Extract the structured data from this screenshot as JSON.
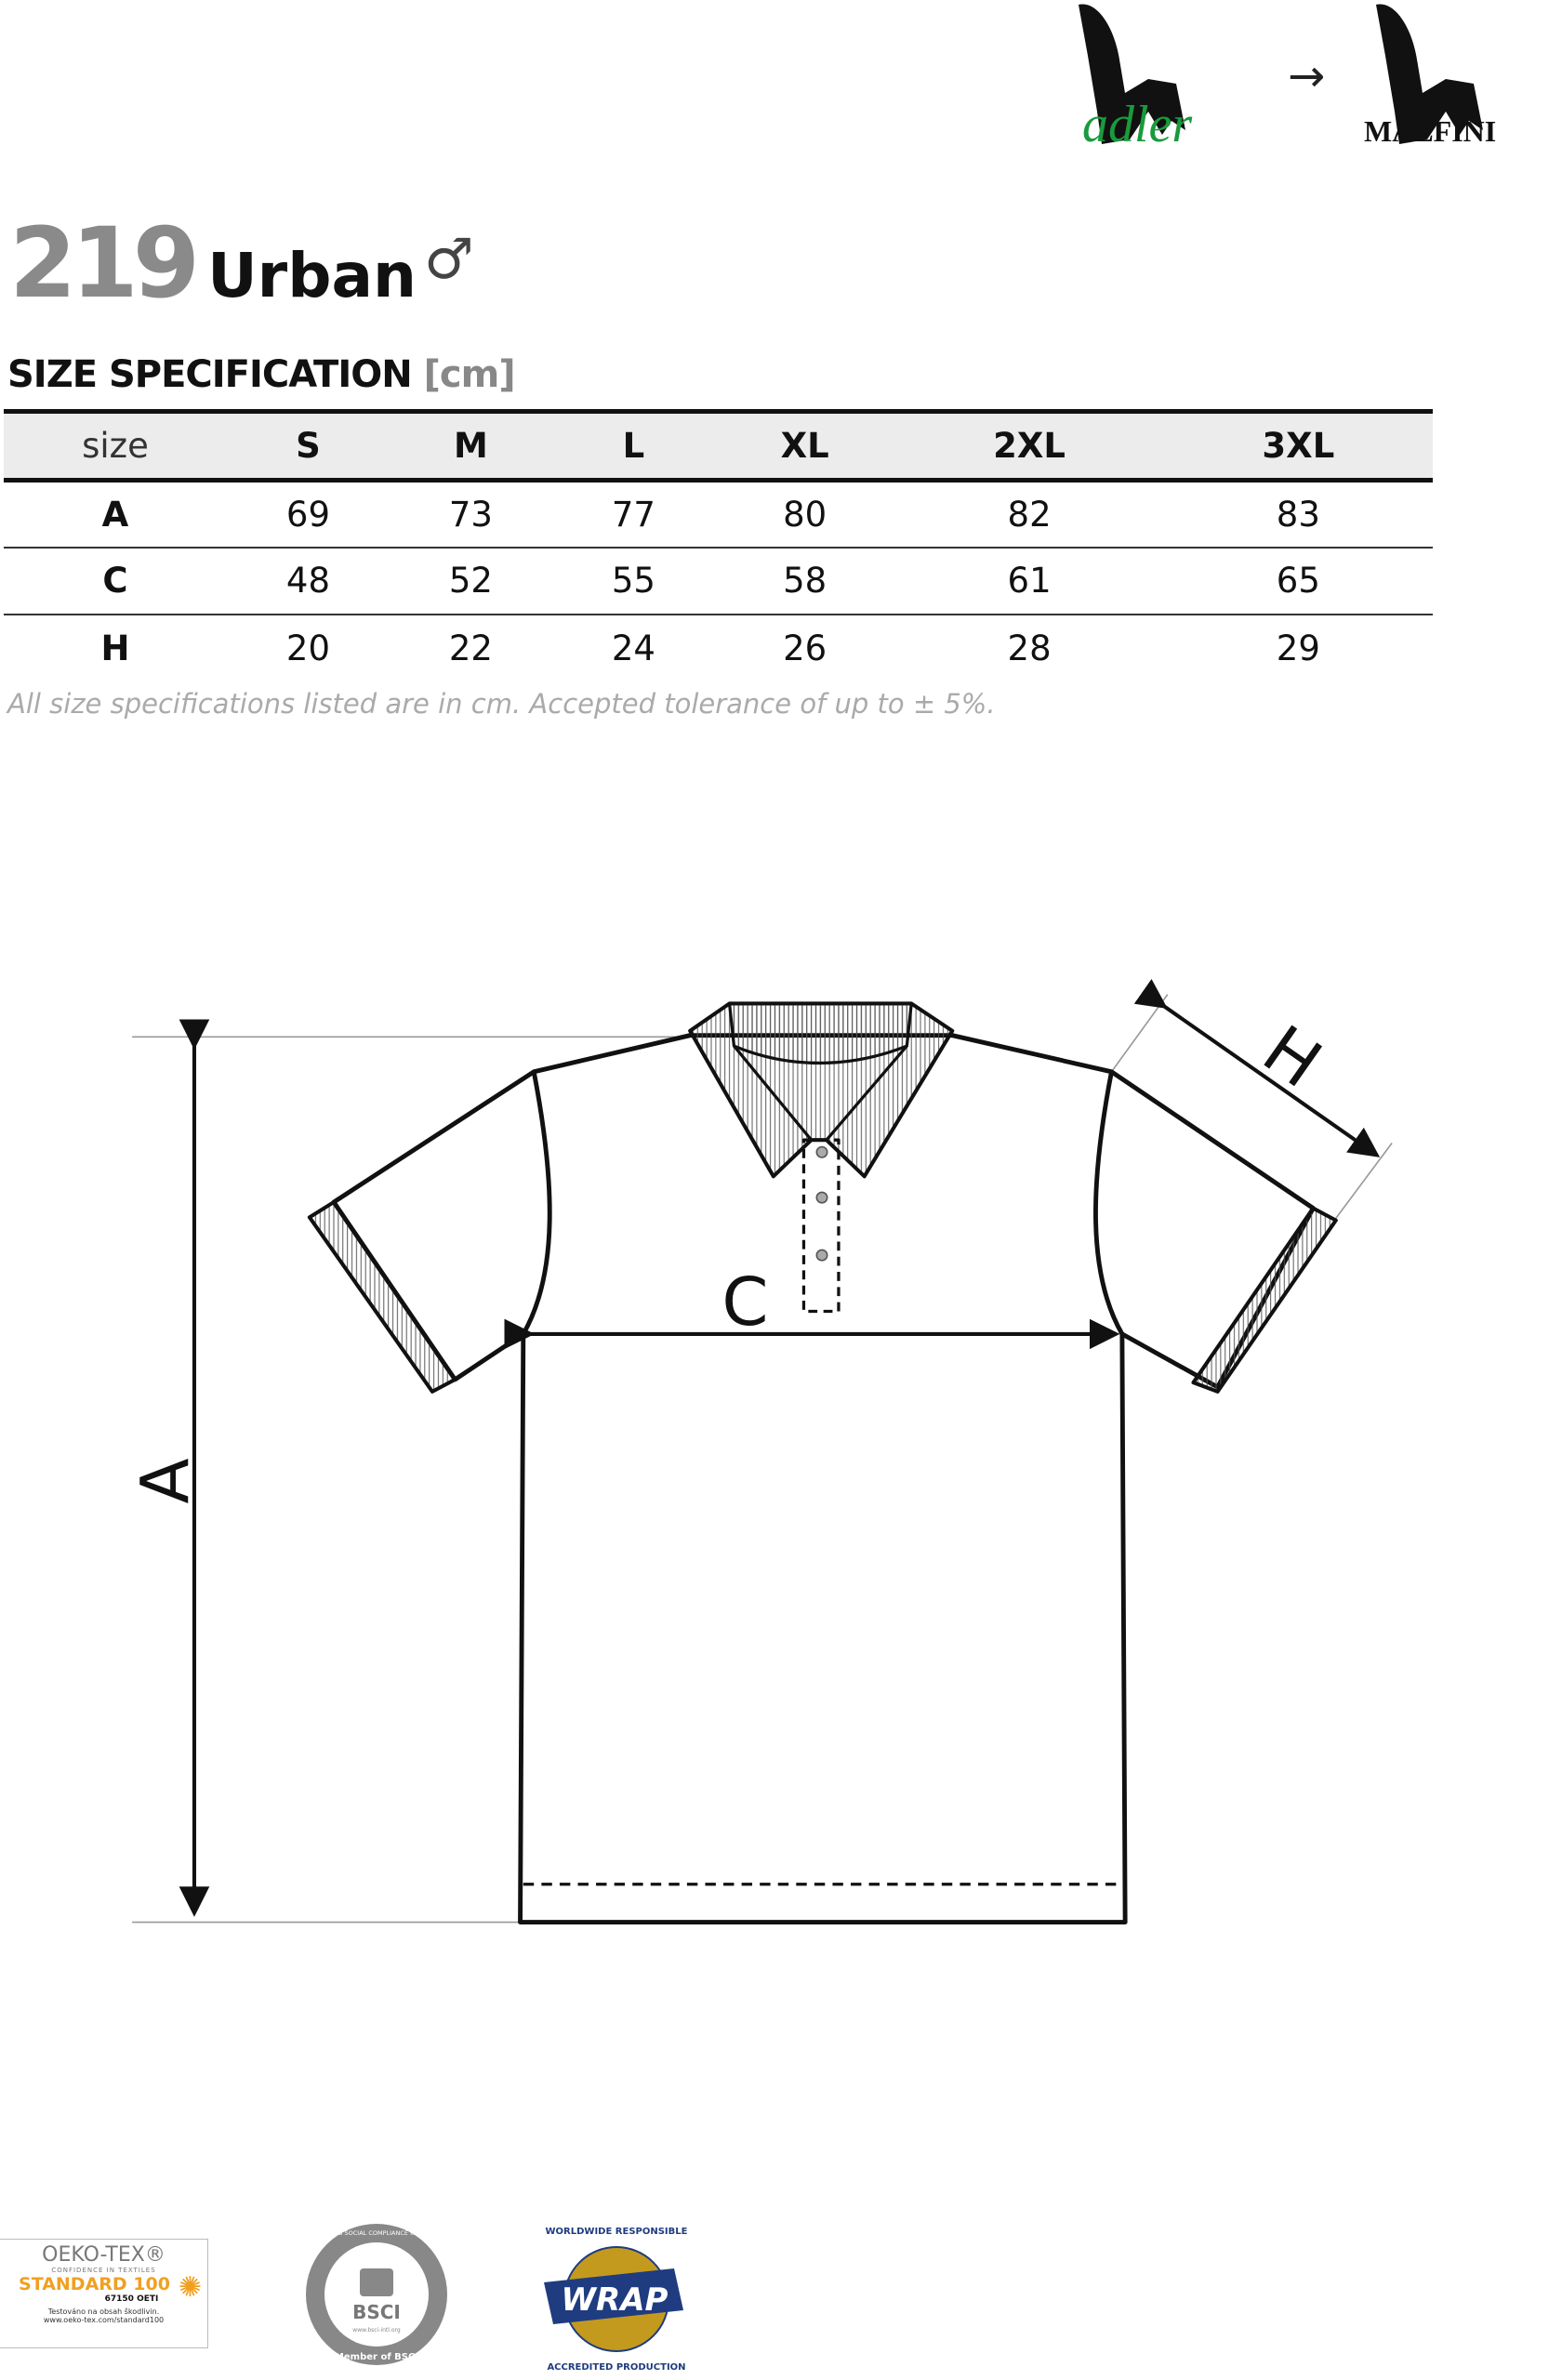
{
  "brand": {
    "old_logo": "adler",
    "new_logo": "MALFINI",
    "arrow": "→",
    "adler_color": "#1a9a3c"
  },
  "product": {
    "number": "219",
    "name": "Urban",
    "gender_symbol": "♂"
  },
  "spec": {
    "title": "SIZE SPECIFICATION",
    "unit": "[cm]"
  },
  "table": {
    "headers": [
      "size",
      "S",
      "M",
      "L",
      "XL",
      "2XL",
      "3XL"
    ],
    "rows": [
      {
        "label": "A",
        "values": [
          "69",
          "73",
          "77",
          "80",
          "82",
          "83"
        ]
      },
      {
        "label": "C",
        "values": [
          "48",
          "52",
          "55",
          "58",
          "61",
          "65"
        ]
      },
      {
        "label": "H",
        "values": [
          "20",
          "22",
          "24",
          "26",
          "28",
          "29"
        ]
      }
    ]
  },
  "note": "All size specifications listed are in cm. Accepted tolerance of up to ± 5%.",
  "diagram": {
    "label_a": "A",
    "label_c": "C",
    "label_h": "H"
  },
  "certifications": {
    "oekotex": {
      "title": "OEKO-TEX®",
      "tagline": "CONFIDENCE IN TEXTILES",
      "standard": "STANDARD 100",
      "code": "67150 OETI",
      "line1": "Testováno na obsah škodlivin.",
      "line2": "www.oeko-tex.com/standard100"
    },
    "bsci": {
      "ring": "BUSINESS SOCIAL COMPLIANCE INITIATIVE",
      "name": "BSCI",
      "url": "www.bsci-intl.org",
      "member": "Member of BSCI"
    },
    "wrap": {
      "top": "WORLDWIDE RESPONSIBLE",
      "name": "WRAP",
      "bottom": "ACCREDITED PRODUCTION"
    }
  }
}
